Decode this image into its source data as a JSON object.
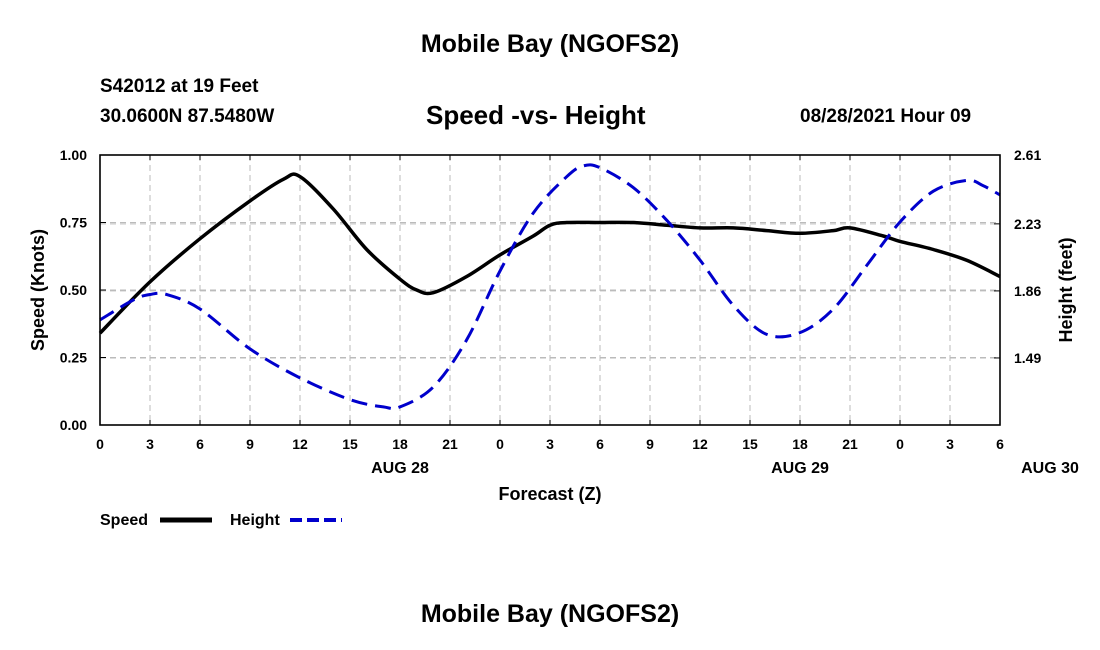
{
  "page": {
    "title_top": "Mobile Bay (NGOFS2)",
    "title_bottom": "Mobile Bay (NGOFS2)",
    "station": "S42012 at 19 Feet",
    "coords": "30.0600N  87.5480W",
    "subtitle": "Speed -vs- Height",
    "datetime": "08/28/2021 Hour 09"
  },
  "legend": {
    "speed_label": "Speed",
    "height_label": "Height"
  },
  "colors": {
    "speed": "#000000",
    "height": "#0000cc",
    "grid": "#bbbbbb"
  },
  "chart_data": {
    "type": "line",
    "xlabel": "Forecast (Z)",
    "ylabel": "Speed (Knots)",
    "y2label": "Height (feet)",
    "x_tick_labels": [
      "0",
      "3",
      "6",
      "9",
      "12",
      "15",
      "18",
      "21",
      "0",
      "3",
      "6",
      "9",
      "12",
      "15",
      "18",
      "21",
      "0",
      "3",
      "6"
    ],
    "date_labels": [
      {
        "text": "AUG 28",
        "tick_index": 6
      },
      {
        "text": "AUG 29",
        "tick_index": 14
      },
      {
        "text": "AUG 30",
        "tick_index": 19
      }
    ],
    "y_ticks": [
      "0.00",
      "0.25",
      "0.50",
      "0.75",
      "1.00"
    ],
    "y2_ticks": [
      "1.49",
      "1.86",
      "2.23",
      "2.61"
    ],
    "ylim": [
      0,
      1
    ],
    "y2lim": [
      1.12,
      2.61
    ],
    "xlim_hours": [
      0,
      54
    ],
    "grid": true,
    "legend_position": "bottom-left",
    "series": [
      {
        "name": "Speed",
        "axis": "left",
        "style": "solid",
        "x": [
          0,
          3,
          6,
          9,
          11,
          12,
          14,
          16,
          18,
          19,
          20,
          22,
          24,
          26,
          27,
          28,
          30,
          32,
          34,
          36,
          38,
          40,
          42,
          44,
          45,
          47,
          48,
          50,
          52,
          54
        ],
        "y": [
          0.34,
          0.53,
          0.69,
          0.83,
          0.91,
          0.92,
          0.8,
          0.65,
          0.54,
          0.5,
          0.49,
          0.55,
          0.63,
          0.7,
          0.74,
          0.75,
          0.75,
          0.75,
          0.74,
          0.73,
          0.73,
          0.72,
          0.71,
          0.72,
          0.73,
          0.7,
          0.68,
          0.65,
          0.61,
          0.55
        ]
      },
      {
        "name": "Height",
        "axis": "right",
        "style": "dashed",
        "x": [
          0,
          2,
          3,
          4,
          6,
          9,
          12,
          15,
          17,
          18,
          20,
          22,
          24,
          26,
          28,
          29,
          30,
          32,
          34,
          36,
          38,
          40,
          42,
          44,
          46,
          48,
          50,
          52,
          53,
          54
        ],
        "y": [
          1.7,
          1.81,
          1.84,
          1.84,
          1.76,
          1.54,
          1.38,
          1.26,
          1.22,
          1.22,
          1.33,
          1.59,
          1.97,
          2.29,
          2.49,
          2.55,
          2.54,
          2.43,
          2.25,
          2.03,
          1.78,
          1.62,
          1.63,
          1.76,
          2.0,
          2.24,
          2.41,
          2.47,
          2.44,
          2.39
        ]
      }
    ]
  }
}
